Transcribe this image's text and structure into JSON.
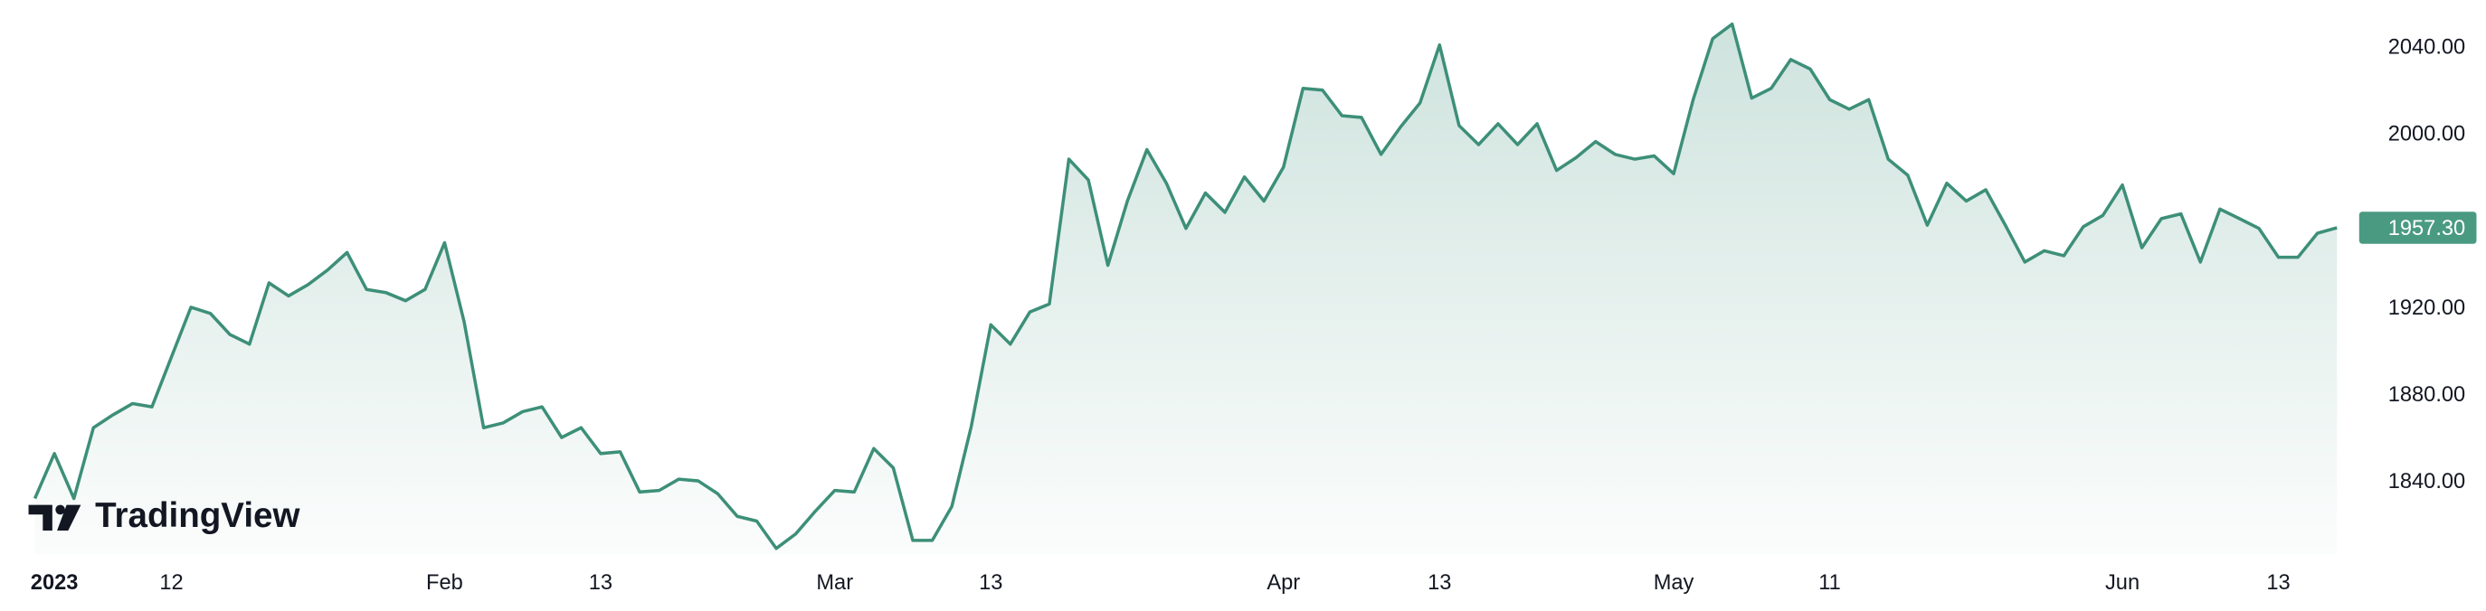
{
  "chart_data": {
    "type": "area",
    "logo_text": "TradingView",
    "last_price_label": "1957.30",
    "color": "#3d8f78",
    "categories": [
      null,
      "2023",
      null,
      null,
      null,
      null,
      null,
      "12",
      null,
      null,
      null,
      null,
      null,
      null,
      null,
      null,
      null,
      null,
      null,
      null,
      null,
      "Feb",
      null,
      null,
      null,
      null,
      null,
      null,
      null,
      "13",
      null,
      null,
      null,
      null,
      null,
      null,
      null,
      null,
      null,
      null,
      null,
      "Mar",
      null,
      null,
      null,
      null,
      null,
      null,
      null,
      "13",
      null,
      null,
      null,
      null,
      null,
      null,
      null,
      null,
      null,
      null,
      null,
      null,
      null,
      null,
      "Apr",
      null,
      null,
      null,
      null,
      null,
      null,
      null,
      "13",
      null,
      null,
      null,
      null,
      null,
      null,
      null,
      null,
      null,
      null,
      null,
      "May",
      null,
      null,
      null,
      null,
      null,
      null,
      null,
      "11",
      null,
      null,
      null,
      null,
      null,
      null,
      null,
      null,
      null,
      null,
      null,
      null,
      null,
      null,
      "Jun",
      null,
      null,
      null,
      null,
      null,
      null,
      null,
      "13",
      null,
      null,
      null
    ],
    "values": [
      1832.6,
      1853.3,
      1832.6,
      1865.2,
      1871.1,
      1876.3,
      1874.8,
      1897.8,
      1920.7,
      1917.8,
      1908.1,
      1903.7,
      1931.9,
      1925.9,
      1931.1,
      1937.8,
      1945.9,
      1928.9,
      1927.4,
      1923.7,
      1928.9,
      1950.4,
      1914.1,
      1865.2,
      1867.4,
      1872.6,
      1874.8,
      1860.7,
      1865.2,
      1853.3,
      1854.1,
      1835.6,
      1836.3,
      1841.5,
      1840.7,
      1834.8,
      1824.4,
      1822.2,
      1809.6,
      1816.3,
      1826.7,
      1836.3,
      1835.6,
      1855.6,
      1846.7,
      1813.3,
      1813.3,
      1828.9,
      1865.9,
      1912.6,
      1903.7,
      1918.5,
      1922.2,
      1988.9,
      1979.3,
      1940.0,
      1969.6,
      1993.3,
      1977.8,
      1957.0,
      1973.3,
      1964.4,
      1980.7,
      1969.6,
      1985.2,
      2021.5,
      2020.7,
      2008.9,
      2008.1,
      1991.1,
      2003.7,
      2014.8,
      2041.5,
      2004.4,
      1995.6,
      2005.2,
      1995.6,
      2005.2,
      1983.7,
      1989.6,
      1997.0,
      1991.1,
      1988.9,
      1990.4,
      1982.2,
      2016.3,
      2044.4,
      2051.1,
      2017.0,
      2021.5,
      2034.8,
      2030.4,
      2016.3,
      2011.9,
      2016.3,
      1988.9,
      1981.5,
      1958.5,
      1977.8,
      1969.6,
      1974.8,
      1958.5,
      1941.5,
      1946.7,
      1944.4,
      1957.8,
      1963.0,
      1977.0,
      1948.1,
      1961.5,
      1963.7,
      1941.5,
      1965.9,
      1961.5,
      1957.0,
      1943.7,
      1943.7,
      1954.8,
      1957.3
    ],
    "ylim": [
      1806.7,
      2062.2
    ],
    "yticks": [
      {
        "value": 1840,
        "label": "1840.00"
      },
      {
        "value": 1880,
        "label": "1880.00"
      },
      {
        "value": 1920,
        "label": "1920.00"
      },
      {
        "value": 2000,
        "label": "2000.00"
      },
      {
        "value": 2040,
        "label": "2040.00"
      }
    ],
    "grid": false
  }
}
